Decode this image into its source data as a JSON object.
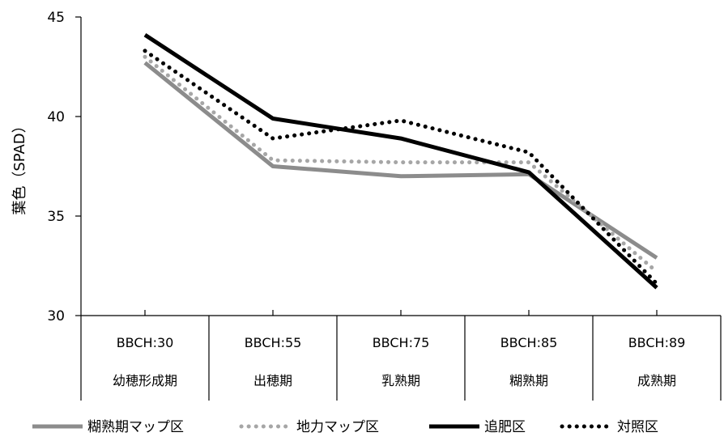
{
  "chart_data": {
    "type": "line",
    "ylabel": "葉色（SPAD）",
    "ylim": [
      30,
      45
    ],
    "yticks": [
      30,
      35,
      40,
      45
    ],
    "grid": false,
    "legend_position": "bottom",
    "categories": [
      {
        "bbch": "BBCH:30",
        "stage": "幼穂形成期"
      },
      {
        "bbch": "BBCH:55",
        "stage": "出穂期"
      },
      {
        "bbch": "BBCH:75",
        "stage": "乳熟期"
      },
      {
        "bbch": "BBCH:85",
        "stage": "糊熟期"
      },
      {
        "bbch": "BBCH:89",
        "stage": "成熟期"
      }
    ],
    "series": [
      {
        "name": "糊熟期マップ区",
        "color": "#8c8c8c",
        "style": "solid",
        "width": 5,
        "values": [
          42.7,
          37.5,
          37.0,
          37.1,
          32.9
        ]
      },
      {
        "name": "地力マップ区",
        "color": "#a6a6a6",
        "style": "dotted",
        "width": 5,
        "values": [
          43.0,
          37.8,
          37.7,
          37.7,
          32.2
        ]
      },
      {
        "name": "追肥区",
        "color": "#000000",
        "style": "solid",
        "width": 5,
        "values": [
          44.1,
          39.9,
          38.9,
          37.2,
          31.4
        ]
      },
      {
        "name": "対照区",
        "color": "#000000",
        "style": "dotted",
        "width": 5,
        "values": [
          43.3,
          38.9,
          39.8,
          38.2,
          31.6
        ]
      }
    ]
  }
}
